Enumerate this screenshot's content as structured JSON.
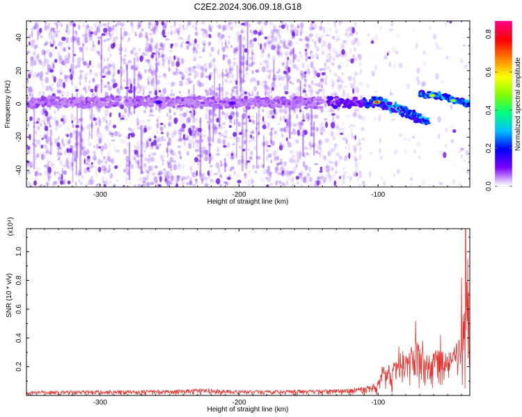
{
  "figure_title": "C2E2.2024.306.09.18.G18",
  "chart_data": [
    {
      "type": "heatmap",
      "title": "C2E2.2024.306.09.18.G18",
      "xlabel": "Height of straight line (km)",
      "ylabel": "Frequency (Hz)",
      "xlim": [
        -353,
        -34
      ],
      "ylim": [
        -50,
        50
      ],
      "x_ticks": [
        -300,
        -200,
        -100
      ],
      "y_ticks": [
        -40,
        -20,
        0,
        20,
        40
      ],
      "colorbar": {
        "label": "Normalized spectral amplitude",
        "range": [
          0,
          0.87
        ],
        "ticks": [
          0.0,
          0.2,
          0.4,
          0.6,
          0.8
        ],
        "colormap": [
          "#ffffff",
          "#7b00ff",
          "#0000ff",
          "#00bfff",
          "#00ff80",
          "#80ff00",
          "#ffff00",
          "#ff8000",
          "#ff0000",
          "#ff0080"
        ]
      },
      "ridge": [
        {
          "x": -353,
          "y": 1
        },
        {
          "x": -250,
          "y": 1
        },
        {
          "x": -150,
          "y": 0.5
        },
        {
          "x": -137,
          "y": 1
        },
        {
          "x": -100,
          "y": 1
        },
        {
          "x": -90,
          "y": -2
        },
        {
          "x": -80,
          "y": -5
        },
        {
          "x": -70,
          "y": -9
        },
        {
          "x": -64,
          "y": -10
        }
      ],
      "upper_branch": [
        {
          "x": -70,
          "y": 6
        },
        {
          "x": -55,
          "y": 5
        },
        {
          "x": -45,
          "y": 2
        },
        {
          "x": -34,
          "y": 0
        }
      ],
      "peak_points": [
        {
          "x": -101,
          "y": 1,
          "value": 0.85
        },
        {
          "x": -61,
          "y": 5,
          "value": 0.7
        },
        {
          "x": -46,
          "y": 2,
          "value": 0.6
        },
        {
          "x": -258,
          "y": 1,
          "value": 0.2
        },
        {
          "x": -205,
          "y": 0.5,
          "value": 0.18
        }
      ]
    },
    {
      "type": "line",
      "xlabel": "Height of straight line (km)",
      "ylabel": "SNR (10 * v/v)",
      "y_multiplier": "(x10⁴)",
      "xlim": [
        -353,
        -34
      ],
      "ylim": [
        0,
        1.16
      ],
      "x_ticks": [
        -300,
        -200,
        -100
      ],
      "y_ticks": [
        0.2,
        0.4,
        0.6,
        0.8,
        1.0
      ],
      "line_color": "#e8302c",
      "envelope": [
        {
          "x": -353,
          "y": 0.03
        },
        {
          "x": -300,
          "y": 0.035
        },
        {
          "x": -240,
          "y": 0.04
        },
        {
          "x": -229,
          "y": 0.05
        },
        {
          "x": -200,
          "y": 0.035
        },
        {
          "x": -140,
          "y": 0.04
        },
        {
          "x": -120,
          "y": 0.05
        },
        {
          "x": -110,
          "y": 0.06
        },
        {
          "x": -100,
          "y": 0.1
        },
        {
          "x": -97,
          "y": 0.2
        },
        {
          "x": -90,
          "y": 0.22
        },
        {
          "x": -83,
          "y": 0.32
        },
        {
          "x": -78,
          "y": 0.28
        },
        {
          "x": -75,
          "y": 0.45
        },
        {
          "x": -70,
          "y": 0.34
        },
        {
          "x": -64,
          "y": 0.28
        },
        {
          "x": -58,
          "y": 0.32
        },
        {
          "x": -50,
          "y": 0.3
        },
        {
          "x": -45,
          "y": 0.34
        },
        {
          "x": -40,
          "y": 0.45
        },
        {
          "x": -38,
          "y": 0.75
        },
        {
          "x": -36,
          "y": 1.1
        },
        {
          "x": -34,
          "y": 0.55
        }
      ],
      "spikes": [
        {
          "x": -97,
          "y": 0.2
        },
        {
          "x": -85,
          "y": 0.34
        },
        {
          "x": -73,
          "y": 0.52
        },
        {
          "x": -68,
          "y": 0.38
        },
        {
          "x": -55,
          "y": 0.42
        },
        {
          "x": -40,
          "y": 0.82
        },
        {
          "x": -37,
          "y": 1.16
        }
      ]
    }
  ]
}
